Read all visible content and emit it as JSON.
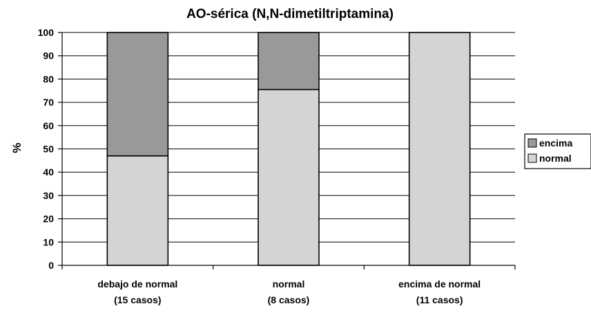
{
  "chart_data": {
    "type": "bar",
    "stacked": true,
    "title": "AO-sérica (N,N-dimetiltriptamina)",
    "ylabel": "%",
    "xlabel": "",
    "ylim": [
      0,
      100
    ],
    "yticks": [
      0,
      10,
      20,
      30,
      40,
      50,
      60,
      70,
      80,
      90,
      100
    ],
    "grid": true,
    "legend_position": "right",
    "categories": [
      [
        "debajo de normal",
        "(15 casos)"
      ],
      [
        "normal",
        "(8 casos)"
      ],
      [
        "encima de normal",
        "(11 casos)"
      ]
    ],
    "series": [
      {
        "name": "normal",
        "color": "#d4d4d4",
        "values": [
          47,
          75.5,
          100
        ]
      },
      {
        "name": "encima",
        "color": "#999999",
        "values": [
          53,
          24.5,
          0
        ]
      }
    ],
    "legend": [
      "encima",
      "normal"
    ]
  }
}
